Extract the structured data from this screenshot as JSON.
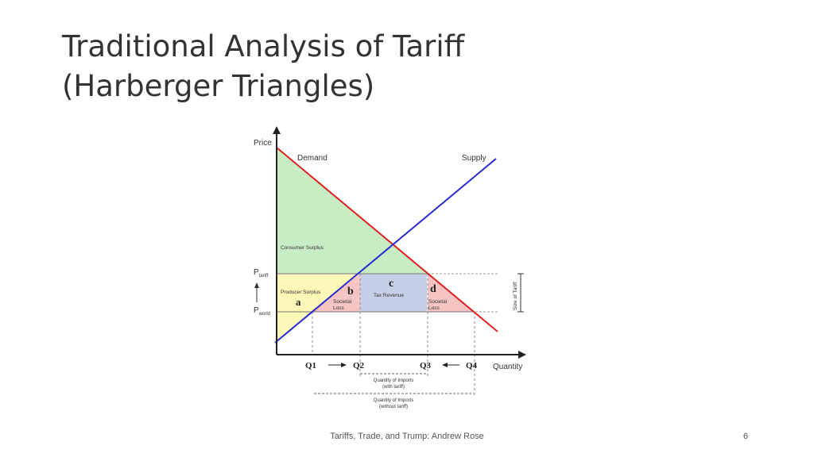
{
  "slide": {
    "title_line1": "Traditional Analysis of Tariff",
    "title_line2": "(Harberger Triangles)",
    "footer": "Tariffs, Trade, and Trump: Andrew Rose",
    "page_number": "6"
  },
  "diagram": {
    "axis_y_label": "Price",
    "axis_x_label": "Quantity",
    "demand_label": "Demand",
    "supply_label": "Supply",
    "p_tariff_main": "P",
    "p_tariff_sub": "tariff",
    "p_world_main": "P",
    "p_world_sub": "world",
    "consumer_surplus": "Consumer Surplus",
    "producer_surplus": "Producer Surplus",
    "area_a": "a",
    "area_b": "b",
    "area_c": "c",
    "area_d": "d",
    "societal_loss_b_1": "Societal",
    "societal_loss_b_2": "Loss",
    "tax_revenue": "Tax Revenue",
    "societal_loss_d_1": "Societal",
    "societal_loss_d_2": "Loss",
    "size_of_tariff": "Size of Tariff",
    "q1": "Q1",
    "q2": "Q2",
    "q3": "Q3",
    "q4": "Q4",
    "imports_with_tariff_1": "Quantity of Imports",
    "imports_with_tariff_2": "(with tariff)",
    "imports_without_tariff_1": "Quantity of Imports",
    "imports_without_tariff_2": "(without tariff)",
    "colors": {
      "demand": "#e02020",
      "supply": "#2a2ad0",
      "consumer_surplus": "#c8ecc4",
      "producer_surplus": "#fbf8b8",
      "societal_loss": "#f7c4c4",
      "tax_revenue": "#c5cfe8"
    }
  }
}
